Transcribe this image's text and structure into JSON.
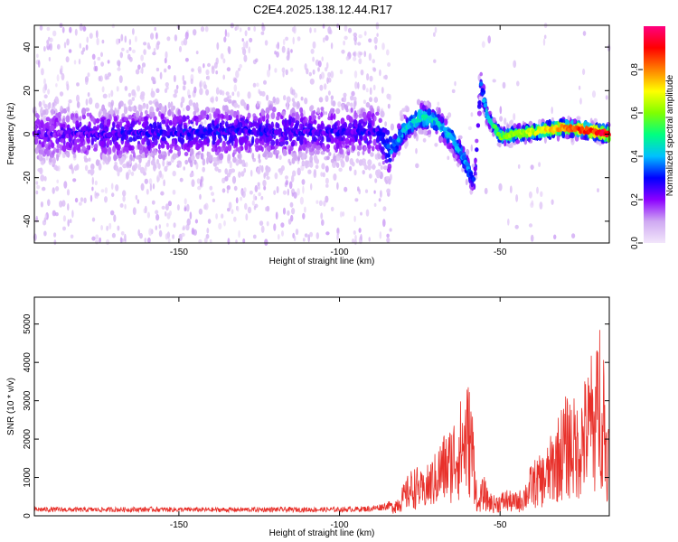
{
  "title": "C2E4.2025.138.12.44.R17",
  "chart_data": [
    {
      "type": "heatmap",
      "xlabel": "Height of straight line (km)",
      "ylabel": "Frequency (Hz)",
      "xlim": [
        -195,
        -16
      ],
      "ylim": [
        -50,
        50
      ],
      "xticks": [
        -150,
        -100,
        -50
      ],
      "yticks": [
        -40,
        -20,
        0,
        20,
        40
      ],
      "grid": false,
      "colorbar": {
        "label": "Normalized spectral amplitude",
        "range": [
          0,
          1
        ],
        "ticks": [
          0,
          0.2,
          0.4,
          0.6,
          0.8
        ],
        "tick_labels": [
          "0.0",
          "0.2",
          "0.4",
          "0.6",
          "0.8"
        ],
        "colors": [
          "#f2e6fb",
          "#cfa9f2",
          "#8c00ff",
          "#0000ff",
          "#00c0ff",
          "#00ff80",
          "#80ff00",
          "#ffff00",
          "#ff8000",
          "#ff0000",
          "#ff0080"
        ]
      },
      "ridge": [
        {
          "x": -195,
          "y": 0,
          "amp": 0.2
        },
        {
          "x": -170,
          "y": 0,
          "amp": 0.25
        },
        {
          "x": -140,
          "y": 1,
          "amp": 0.27
        },
        {
          "x": -110,
          "y": 1,
          "amp": 0.25
        },
        {
          "x": -88,
          "y": 1,
          "amp": 0.25
        },
        {
          "x": -84,
          "y": -8,
          "amp": 0.35
        },
        {
          "x": -80,
          "y": 2,
          "amp": 0.4
        },
        {
          "x": -75,
          "y": 8,
          "amp": 0.45
        },
        {
          "x": -70,
          "y": 6,
          "amp": 0.42
        },
        {
          "x": -65,
          "y": -2,
          "amp": 0.4
        },
        {
          "x": -61,
          "y": -12,
          "amp": 0.38
        },
        {
          "x": -58,
          "y": -22,
          "amp": 0.3
        },
        {
          "x": -57,
          "y": 0,
          "amp": 0.2
        },
        {
          "x": -56,
          "y": 24,
          "amp": 0.3
        },
        {
          "x": -54,
          "y": 8,
          "amp": 0.42
        },
        {
          "x": -50,
          "y": -1,
          "amp": 0.55
        },
        {
          "x": -40,
          "y": 1,
          "amp": 0.65
        },
        {
          "x": -30,
          "y": 3,
          "amp": 0.8
        },
        {
          "x": -24,
          "y": 2,
          "amp": 0.85
        },
        {
          "x": -16,
          "y": 0,
          "amp": 0.92
        }
      ]
    },
    {
      "type": "line",
      "xlabel": "Height of straight line (km)",
      "ylabel": "SNR (10 * v/v)",
      "xlim": [
        -195,
        -16
      ],
      "ylim": [
        0,
        5700
      ],
      "xticks": [
        -150,
        -100,
        -50
      ],
      "yticks": [
        0,
        1000,
        2000,
        3000,
        4000,
        5000
      ],
      "grid": false,
      "series": [
        {
          "color": "#e8302a",
          "x": [
            -195,
            -180,
            -160,
            -140,
            -120,
            -100,
            -90,
            -84,
            -82,
            -80,
            -78,
            -76,
            -74,
            -72,
            -70,
            -68,
            -66,
            -64,
            -62,
            -60,
            -59,
            -58,
            -57,
            -56,
            -55,
            -54,
            -52,
            -50,
            -48,
            -46,
            -44,
            -42,
            -40,
            -38,
            -36,
            -34,
            -32,
            -30,
            -28,
            -26,
            -24,
            -22,
            -21,
            -20,
            -19,
            -18,
            -17,
            -16
          ],
          "values": [
            180,
            170,
            180,
            170,
            175,
            175,
            200,
            300,
            450,
            700,
            1000,
            1100,
            900,
            1200,
            1400,
            1800,
            1900,
            2300,
            2600,
            3000,
            2700,
            1900,
            300,
            700,
            900,
            600,
            450,
            500,
            600,
            500,
            550,
            800,
            1200,
            1300,
            1400,
            1800,
            2200,
            2600,
            2700,
            2500,
            3000,
            3300,
            3400,
            3600,
            4600,
            4300,
            2600,
            2100
          ]
        }
      ]
    }
  ]
}
